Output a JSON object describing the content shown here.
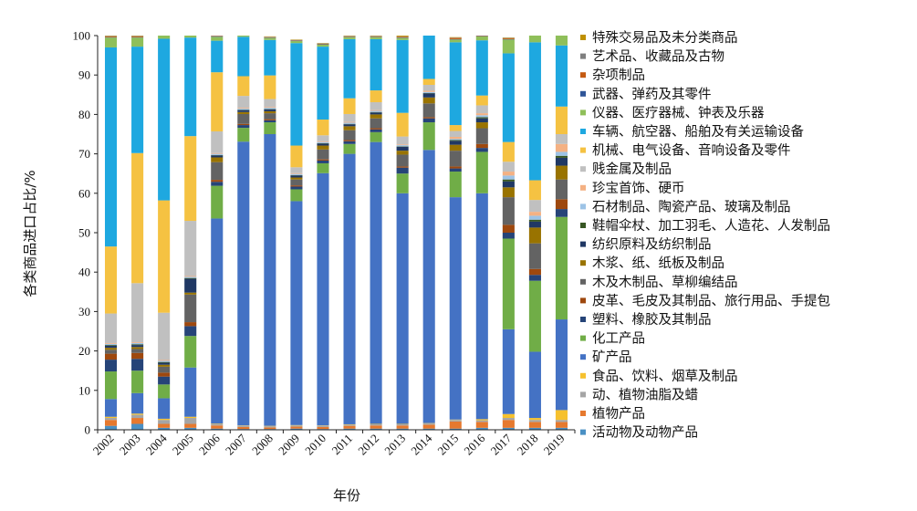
{
  "chart_data": {
    "type": "bar",
    "stacked": true,
    "xlabel": "年份",
    "ylabel": "各类商品进口占比/%",
    "ylim": [
      0,
      100
    ],
    "yticks": [
      0,
      10,
      20,
      30,
      40,
      50,
      60,
      70,
      80,
      90,
      100
    ],
    "legend_position": "right",
    "categories": [
      "2002",
      "2003",
      "2004",
      "2005",
      "2006",
      "2007",
      "2008",
      "2009",
      "2010",
      "2011",
      "2012",
      "2013",
      "2014",
      "2015",
      "2016",
      "2017",
      "2018",
      "2019"
    ],
    "series": [
      {
        "name": "活动物及动物产品",
        "color": "#4a90c4",
        "values": [
          1.0,
          1.5,
          0.5,
          0.5,
          0.3,
          0.2,
          0.2,
          0.3,
          0.2,
          0.3,
          0.3,
          0.3,
          0.3,
          0.3,
          0.5,
          0.5,
          0.5,
          0.5
        ]
      },
      {
        "name": "植物产品",
        "color": "#e6792e",
        "values": [
          1.5,
          1.5,
          1.0,
          1.0,
          0.8,
          0.5,
          0.4,
          0.5,
          0.5,
          0.7,
          0.8,
          0.8,
          1.0,
          1.8,
          1.5,
          2.0,
          1.5,
          1.5
        ]
      },
      {
        "name": "动、植物油脂及蜡",
        "color": "#a5a5a5",
        "values": [
          0.5,
          0.8,
          1.0,
          1.5,
          0.4,
          0.3,
          0.3,
          0.3,
          0.3,
          0.3,
          0.3,
          0.3,
          0.3,
          0.4,
          0.4,
          0.5,
          0.5,
          0.5
        ]
      },
      {
        "name": "食品、饮料、烟草及制品",
        "color": "#f6c12e",
        "values": [
          0.3,
          0.3,
          0.3,
          0.3,
          0.1,
          0.1,
          0.1,
          0.1,
          0.1,
          0.1,
          0.1,
          0.1,
          0.1,
          0.1,
          0.3,
          1.0,
          0.5,
          2.5
        ]
      },
      {
        "name": "矿产品",
        "color": "#4472c4",
        "values": [
          4.5,
          5.2,
          5.2,
          12.5,
          52.0,
          72.0,
          74.0,
          56.8,
          64.0,
          68.6,
          71.5,
          58.5,
          69.3,
          56.4,
          57.3,
          21.5,
          16.8,
          23.0
        ]
      },
      {
        "name": "化工产品",
        "color": "#70ad47",
        "values": [
          7.0,
          5.7,
          3.5,
          8.0,
          8.3,
          3.5,
          3.0,
          3.0,
          2.5,
          2.5,
          2.5,
          5.0,
          7.0,
          6.5,
          10.5,
          23.0,
          18.0,
          26.0
        ]
      },
      {
        "name": "塑料、橡胶及其制品",
        "color": "#264478",
        "values": [
          3.0,
          3.0,
          2.0,
          2.5,
          1.0,
          0.7,
          0.5,
          0.7,
          0.7,
          0.7,
          0.7,
          1.5,
          1.0,
          0.8,
          1.0,
          1.5,
          1.5,
          2.0
        ]
      },
      {
        "name": "皮革、毛皮及其制品、旅行用品、手提包",
        "color": "#9e480e",
        "values": [
          1.5,
          1.5,
          1.0,
          1.0,
          0.5,
          0.3,
          0.3,
          0.3,
          0.3,
          0.3,
          0.3,
          0.3,
          0.3,
          0.5,
          1.0,
          2.0,
          1.5,
          2.5
        ]
      },
      {
        "name": "木及木制品、草柳编结品",
        "color": "#636363",
        "values": [
          1.0,
          1.0,
          1.5,
          7.0,
          4.5,
          2.5,
          1.5,
          1.5,
          2.5,
          2.5,
          2.5,
          3.0,
          3.5,
          4.0,
          4.0,
          7.0,
          6.5,
          5.0
        ]
      },
      {
        "name": "木浆、纸、纸板及制品",
        "color": "#997300",
        "values": [
          0.5,
          0.5,
          0.5,
          0.5,
          1.2,
          0.5,
          0.5,
          0.5,
          1.0,
          1.0,
          1.0,
          1.0,
          1.5,
          1.5,
          1.5,
          2.5,
          4.0,
          3.5
        ]
      },
      {
        "name": "纺织原料及纺织制品",
        "color": "#203864",
        "values": [
          0.5,
          0.5,
          0.5,
          3.5,
          0.5,
          0.5,
          0.5,
          0.5,
          0.5,
          0.5,
          0.5,
          1.0,
          1.0,
          1.0,
          1.0,
          1.5,
          1.5,
          2.0
        ]
      },
      {
        "name": "鞋帽伞杖、加工羽毛、人造花、人发制品",
        "color": "#375623",
        "values": [
          0.2,
          0.2,
          0.2,
          0.2,
          0.1,
          0.1,
          0.1,
          0.1,
          0.1,
          0.1,
          0.1,
          0.1,
          0.1,
          0.2,
          0.3,
          0.5,
          0.5,
          0.5
        ]
      },
      {
        "name": "石材制品、陶瓷产品、玻璃及制品",
        "color": "#9dc3e6",
        "values": [
          0.3,
          0.3,
          0.3,
          0.3,
          0.3,
          0.3,
          0.3,
          0.3,
          0.3,
          0.3,
          0.3,
          0.3,
          0.3,
          0.3,
          0.5,
          1.0,
          1.0,
          1.0
        ]
      },
      {
        "name": "珍宝首饰、硬币",
        "color": "#f4b183",
        "values": [
          0.2,
          0.2,
          0.2,
          0.2,
          0.2,
          0.2,
          0.2,
          0.2,
          0.2,
          0.2,
          0.2,
          0.2,
          0.3,
          0.5,
          0.5,
          1.0,
          1.0,
          2.0
        ]
      },
      {
        "name": "贱金属及制品",
        "color": "#c0c0c0",
        "values": [
          7.5,
          15.0,
          12.0,
          14.0,
          5.5,
          3.0,
          2.0,
          1.5,
          1.5,
          2.0,
          2.0,
          2.0,
          1.5,
          1.5,
          2.0,
          2.5,
          3.0,
          2.5
        ]
      },
      {
        "name": "机械、电气设备、音响设备及零件",
        "color": "#f5c242",
        "values": [
          17.0,
          33.0,
          28.5,
          21.5,
          15.0,
          5.0,
          6.0,
          5.5,
          4.0,
          4.0,
          3.0,
          6.0,
          1.5,
          1.5,
          2.5,
          5.0,
          5.0,
          7.0
        ]
      },
      {
        "name": "车辆、航空器、船舶及有关运输设备",
        "color": "#1ea8e0",
        "values": [
          50.5,
          27.0,
          41.0,
          25.0,
          8.0,
          10.0,
          9.0,
          26.0,
          18.5,
          15.0,
          13.0,
          18.5,
          11.0,
          21.0,
          14.0,
          22.5,
          35.0,
          15.5
        ]
      },
      {
        "name": "仪器、医疗器械、钟表及乐器",
        "color": "#8fbf5a",
        "values": [
          2.5,
          2.3,
          2.0,
          2.0,
          1.0,
          0.5,
          0.5,
          0.5,
          0.5,
          0.5,
          0.5,
          0.5,
          0.5,
          0.7,
          1.0,
          3.5,
          3.5,
          2.5
        ]
      },
      {
        "name": "武器、弹药及其零件",
        "color": "#2f5597",
        "values": [
          0.1,
          0.1,
          0.1,
          0.1,
          0.1,
          0.1,
          0.1,
          0.1,
          0.1,
          0.1,
          0.1,
          0.1,
          0.1,
          0.1,
          0.1,
          0.1,
          0.1,
          0.1
        ]
      },
      {
        "name": "杂项制品",
        "color": "#c55a11",
        "values": [
          0.2,
          0.2,
          0.2,
          0.2,
          0.1,
          0.1,
          0.1,
          0.1,
          0.1,
          0.1,
          0.1,
          0.2,
          0.2,
          0.3,
          0.8,
          0.2,
          0.2,
          0.2
        ]
      },
      {
        "name": "艺术品、收藏品及古物",
        "color": "#7f7f7f",
        "values": [
          0.1,
          0.1,
          0.1,
          0.1,
          0.1,
          0.1,
          0.1,
          0.1,
          0.1,
          0.1,
          0.1,
          0.1,
          0.1,
          0.1,
          0.1,
          0.1,
          0.1,
          0.1
        ]
      },
      {
        "name": "特殊交易品及未分类商品",
        "color": "#bf9000",
        "values": [
          0.6,
          0.1,
          0.4,
          0.1,
          0.1,
          0.1,
          0.1,
          0.1,
          0.1,
          0.1,
          0.1,
          0.2,
          0.2,
          0.1,
          0.1,
          0.1,
          0.1,
          0.1
        ]
      }
    ]
  }
}
